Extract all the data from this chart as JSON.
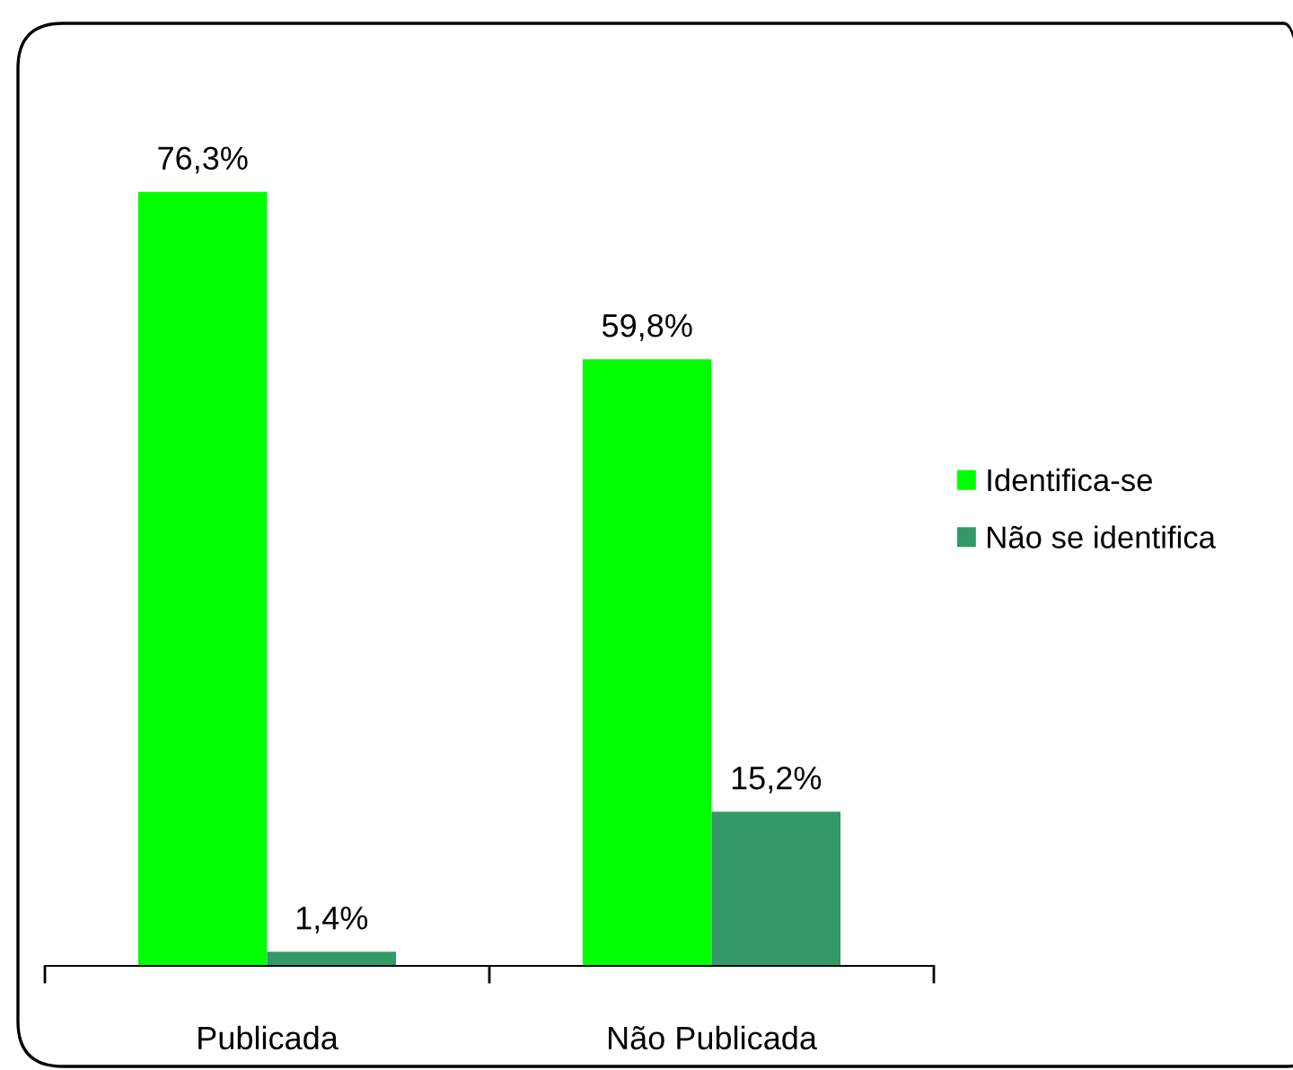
{
  "chart_data": {
    "type": "bar",
    "categories": [
      "Publicada",
      "Não Publicada"
    ],
    "series": [
      {
        "name": "Identifica-se",
        "color": "#00ff00",
        "values": [
          76.3,
          59.8
        ],
        "value_labels": [
          "76,3%",
          "59,8%"
        ]
      },
      {
        "name": "Não se identifica",
        "color": "#339966",
        "values": [
          1.4,
          15.2
        ],
        "value_labels": [
          "1,4%",
          "15,2%"
        ]
      }
    ],
    "legend": "right",
    "grid": false
  }
}
